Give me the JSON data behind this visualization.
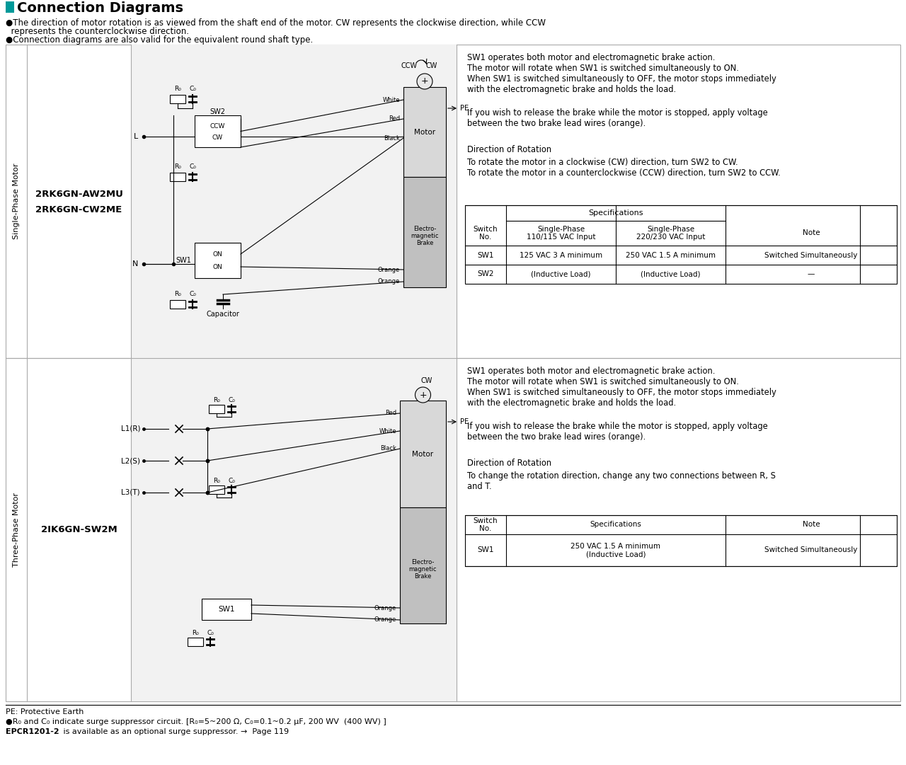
{
  "title": "Connection Diagrams",
  "bg_color": "#ffffff",
  "bullet1a": "●The direction of motor rotation is as viewed from the shaft end of the motor. CW represents the clockwise direction, while CCW",
  "bullet1b": "  represents the counterclockwise direction.",
  "bullet2": "●Connection diagrams are also valid for the equivalent round shaft type.",
  "section1_label": "Single-Phase Motor",
  "section1_model1": "2RK6GN-AW2MU",
  "section1_model2": "2RK6GN-CW2ME",
  "section2_label": "Three-Phase Motor",
  "section2_model": "2IK6GN-SW2M",
  "s1_desc1": "SW1 operates both motor and electromagnetic brake action.\nThe motor will rotate when SW1 is switched simultaneously to ON.\nWhen SW1 is switched simultaneously to OFF, the motor stops immediately\nwith the electromagnetic brake and holds the load.",
  "s1_desc2": "If you wish to release the brake while the motor is stopped, apply voltage\nbetween the two brake lead wires (orange).",
  "s1_desc3": "Direction of Rotation",
  "s1_desc3b": "To rotate the motor in a clockwise (CW) direction, turn SW2 to CW.\nTo rotate the motor in a counterclockwise (CCW) direction, turn SW2 to CCW.",
  "s2_desc1": "SW1 operates both motor and electromagnetic brake action.\nThe motor will rotate when SW1 is switched simultaneously to ON.\nWhen SW1 is switched simultaneously to OFF, the motor stops immediately\nwith the electromagnetic brake and holds the load.",
  "s2_desc2": "If you wish to release the brake while the motor is stopped, apply voltage\nbetween the two brake lead wires (orange).",
  "s2_desc3": "Direction of Rotation",
  "s2_desc3b": "To change the rotation direction, change any two connections between R, S\nand T.",
  "t1_sw1_col1": "125 VAC 3 A minimum",
  "t1_sw1_col2": "250 VAC 1.5 A minimum",
  "t1_sw1_note": "Switched Simultaneously",
  "t1_sw2_col1": "(Inductive Load)",
  "t1_sw2_col2": "(Inductive Load)",
  "t1_sw2_note": "—",
  "t2_sw1_spec": "250 VAC 1.5 A minimum\n(Inductive Load)",
  "t2_sw1_note": "Switched Simultaneously",
  "footer1": "PE: Protective Earth",
  "footer2a": "●R",
  "footer2b": "0",
  "footer2c": " and C",
  "footer2d": "0",
  "footer2e": " indicate surge suppressor circuit. [R",
  "footer2f": "0",
  "footer2g": "=5~200 Ω, C",
  "footer2h": "0",
  "footer2i": "=0.1~0.2 μF, 200 WV  (400 WV) ]",
  "footer3a": "EPCR1201-2",
  "footer3b": " is available as an optional surge suppressor. →  Page 119",
  "specs_header": "Specifications",
  "switch_no": "Switch\nNo.",
  "note": "Note",
  "sp1": "Single-Phase\n110/115 VAC Input",
  "sp2": "Single-Phase\n220/230 VAC Input"
}
